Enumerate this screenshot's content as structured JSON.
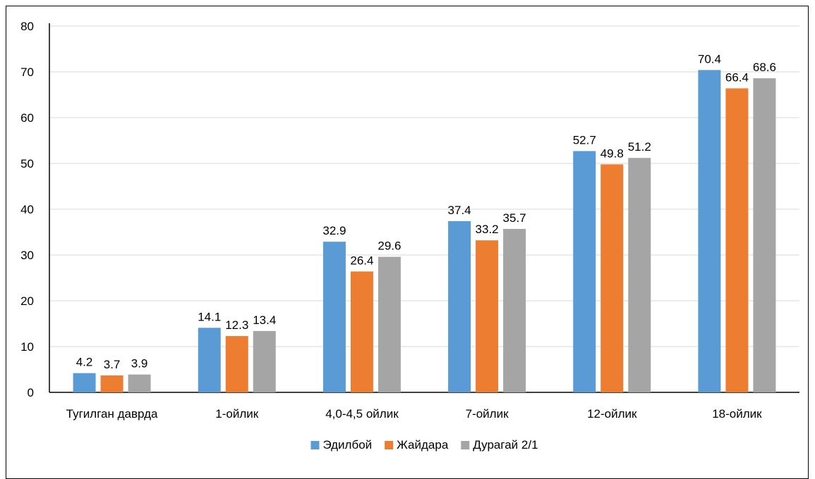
{
  "chart_data": {
    "type": "bar",
    "categories": [
      "Тугилган даврда",
      "1-ойлик",
      "4,0-4,5 ойлик",
      "7-ойлик",
      "12-ойлик",
      "18-ойлик"
    ],
    "series": [
      {
        "name": "Эдилбой",
        "color": "#5B9BD5",
        "values": [
          4.2,
          14.1,
          32.9,
          37.4,
          52.7,
          70.4
        ]
      },
      {
        "name": "Жайдара",
        "color": "#ED7D31",
        "values": [
          3.7,
          12.3,
          26.4,
          33.2,
          49.8,
          66.4
        ]
      },
      {
        "name": "Дурагай 2/1",
        "color": "#A5A5A5",
        "values": [
          3.9,
          13.4,
          29.6,
          35.7,
          51.2,
          68.6
        ]
      }
    ],
    "ylim": [
      0,
      80
    ],
    "yticks": [
      0,
      10,
      20,
      30,
      40,
      50,
      60,
      70,
      80
    ],
    "grid": true,
    "legend_position": "bottom",
    "title": "",
    "xlabel": "",
    "ylabel": ""
  }
}
